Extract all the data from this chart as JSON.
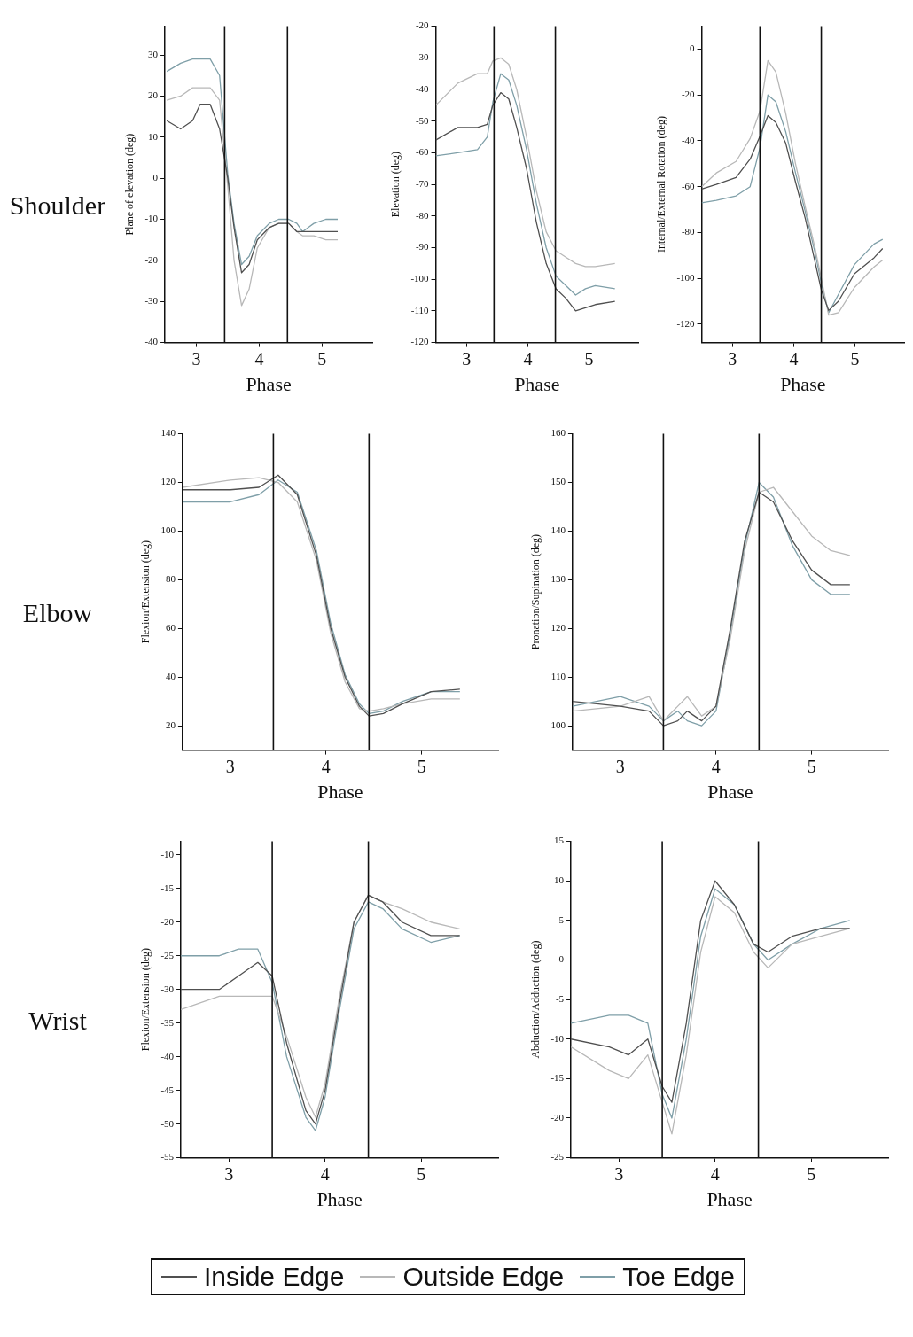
{
  "chart_data": [
    {
      "type": "line",
      "ylabel": "Plane of elevation (deg)",
      "xlabel": "Phase",
      "annotations": [
        "Shoulder"
      ],
      "legend": "bottom",
      "grid": false,
      "x": [
        2.53,
        2.75,
        2.94,
        3.06,
        3.22,
        3.37,
        3.5,
        3.6,
        3.72,
        3.84,
        3.97,
        4.16,
        4.31,
        4.47,
        4.6,
        4.69,
        4.87,
        5.06,
        5.25
      ],
      "xlim": [
        2.5,
        5.8
      ],
      "xticks": [
        3,
        4,
        5
      ],
      "ylim": [
        -40,
        37
      ],
      "yticks": [
        30,
        20,
        10,
        0,
        -10,
        -20,
        -30,
        -40
      ],
      "ref_lines": [
        {
          "axis": "x",
          "value": 3.45
        },
        {
          "axis": "x",
          "value": 4.45
        }
      ],
      "series": [
        {
          "name": "Inside Edge",
          "color": "#505050",
          "values": [
            14,
            12,
            14,
            18,
            18,
            12,
            0,
            -12,
            -23,
            -21,
            -15,
            -12,
            -11,
            -11,
            -13,
            -13,
            -13,
            -13,
            -13
          ]
        },
        {
          "name": "Outside Edge",
          "color": "#b8b8b8",
          "values": [
            19,
            20,
            22,
            22,
            22,
            19,
            -2,
            -20,
            -31,
            -27,
            -17,
            -12,
            -11,
            -11,
            -13,
            -14,
            -14,
            -15,
            -15
          ]
        },
        {
          "name": "Toe Edge",
          "color": "#7f9fa8",
          "values": [
            26,
            28,
            29,
            29,
            29,
            25,
            1,
            -11,
            -21,
            -19,
            -14,
            -11,
            -10,
            -10,
            -11,
            -13,
            -11,
            -10,
            -10
          ]
        }
      ]
    },
    {
      "type": "line",
      "ylabel": "Elevation (deg)",
      "xlabel": "Phase",
      "grid": false,
      "x": [
        2.5,
        2.86,
        3.18,
        3.34,
        3.43,
        3.56,
        3.69,
        3.82,
        3.98,
        4.14,
        4.3,
        4.46,
        4.62,
        4.78,
        4.94,
        5.1,
        5.42
      ],
      "xlim": [
        2.5,
        5.8
      ],
      "xticks": [
        3,
        4,
        5
      ],
      "ylim": [
        -120,
        -20
      ],
      "yticks": [
        -20,
        -30,
        -40,
        -50,
        -60,
        -70,
        -80,
        -90,
        -100,
        -110,
        -120
      ],
      "ref_lines": [
        {
          "axis": "x",
          "value": 3.45
        },
        {
          "axis": "x",
          "value": 4.45
        }
      ],
      "series": [
        {
          "color": "#505050",
          "values": [
            -56,
            -52,
            -52,
            -51,
            -45,
            -41,
            -43,
            -52,
            -65,
            -82,
            -95,
            -103,
            -106,
            -110,
            -109,
            -108,
            -107
          ]
        },
        {
          "color": "#b8b8b8",
          "values": [
            -45,
            -38,
            -35,
            -35,
            -31,
            -30,
            -32,
            -40,
            -55,
            -72,
            -85,
            -91,
            -93,
            -95,
            -96,
            -96,
            -95
          ]
        },
        {
          "color": "#7f9fa8",
          "values": [
            -61,
            -60,
            -59,
            -55,
            -44,
            -35,
            -37,
            -45,
            -59,
            -76,
            -90,
            -99,
            -102,
            -105,
            -103,
            -102,
            -103
          ]
        }
      ]
    },
    {
      "type": "line",
      "ylabel": "Internal/External Rotation (deg)",
      "xlabel": "Phase",
      "grid": false,
      "x": [
        2.5,
        2.74,
        3.06,
        3.29,
        3.45,
        3.58,
        3.71,
        3.87,
        4.03,
        4.19,
        4.35,
        4.45,
        4.57,
        4.73,
        4.99,
        5.31,
        5.45
      ],
      "xlim": [
        2.5,
        5.8
      ],
      "xticks": [
        3,
        4,
        5
      ],
      "ylim": [
        -128,
        10
      ],
      "yticks": [
        0,
        -20,
        -40,
        -60,
        -80,
        -100,
        -120
      ],
      "ref_lines": [
        {
          "axis": "x",
          "value": 3.45
        },
        {
          "axis": "x",
          "value": 4.45
        }
      ],
      "series": [
        {
          "color": "#505050",
          "values": [
            -61,
            -59,
            -56,
            -48,
            -38,
            -29,
            -32,
            -41,
            -58,
            -74,
            -93,
            -105,
            -114,
            -110,
            -98,
            -91,
            -87
          ]
        },
        {
          "color": "#b8b8b8",
          "values": [
            -60,
            -54,
            -49,
            -39,
            -27,
            -5,
            -10,
            -28,
            -50,
            -69,
            -87,
            -100,
            -116,
            -115,
            -104,
            -95,
            -92
          ]
        },
        {
          "color": "#7f9fa8",
          "values": [
            -67,
            -66,
            -64,
            -60,
            -43,
            -20,
            -23,
            -36,
            -54,
            -71,
            -89,
            -102,
            -115,
            -107,
            -94,
            -85,
            -83
          ]
        }
      ]
    },
    {
      "type": "line",
      "ylabel": "Flexion/Extension (deg)",
      "xlabel": "Phase",
      "annotations": [
        "Elbow"
      ],
      "grid": false,
      "x": [
        2.5,
        3.0,
        3.3,
        3.5,
        3.7,
        3.9,
        4.05,
        4.2,
        4.35,
        4.45,
        4.6,
        4.8,
        5.1,
        5.4
      ],
      "xlim": [
        2.5,
        5.8
      ],
      "xticks": [
        3,
        4,
        5
      ],
      "ylim": [
        10,
        140
      ],
      "yticks": [
        140,
        120,
        100,
        80,
        60,
        40,
        20
      ],
      "ref_lines": [
        {
          "axis": "x",
          "value": 3.45
        },
        {
          "axis": "x",
          "value": 4.45
        }
      ],
      "series": [
        {
          "color": "#505050",
          "values": [
            117,
            117,
            118,
            123,
            115,
            90,
            60,
            40,
            28,
            24,
            25,
            29,
            34,
            35
          ]
        },
        {
          "color": "#b8b8b8",
          "values": [
            118,
            121,
            122,
            120,
            112,
            88,
            58,
            38,
            27,
            26,
            27,
            29,
            31,
            31
          ]
        },
        {
          "color": "#7f9fa8",
          "values": [
            112,
            112,
            115,
            121,
            116,
            92,
            62,
            41,
            29,
            25,
            26,
            30,
            34,
            34
          ]
        }
      ]
    },
    {
      "type": "line",
      "ylabel": "Pronation/Supination (deg)",
      "xlabel": "Phase",
      "grid": false,
      "x": [
        2.5,
        3.0,
        3.3,
        3.45,
        3.6,
        3.7,
        3.85,
        4.0,
        4.15,
        4.3,
        4.45,
        4.6,
        4.8,
        5.0,
        5.2,
        5.4
      ],
      "xlim": [
        2.5,
        5.8
      ],
      "xticks": [
        3,
        4,
        5
      ],
      "ylim": [
        95,
        160
      ],
      "yticks": [
        160,
        150,
        140,
        130,
        120,
        110,
        100
      ],
      "ref_lines": [
        {
          "axis": "x",
          "value": 3.45
        },
        {
          "axis": "x",
          "value": 4.45
        }
      ],
      "series": [
        {
          "color": "#505050",
          "values": [
            105,
            104,
            103,
            100,
            101,
            103,
            101,
            104,
            120,
            138,
            148,
            146,
            138,
            132,
            129,
            129
          ]
        },
        {
          "color": "#b8b8b8",
          "values": [
            103,
            104,
            106,
            101,
            104,
            106,
            102,
            104,
            118,
            136,
            148,
            149,
            144,
            139,
            136,
            135
          ]
        },
        {
          "color": "#7f9fa8",
          "values": [
            104,
            106,
            104,
            101,
            103,
            101,
            100,
            103,
            119,
            137,
            150,
            147,
            137,
            130,
            127,
            127
          ]
        }
      ]
    },
    {
      "type": "line",
      "ylabel": "Flexion/Extension (deg)",
      "xlabel": "Phase",
      "annotations": [
        "Wrist"
      ],
      "grid": false,
      "x": [
        2.5,
        2.9,
        3.1,
        3.3,
        3.45,
        3.6,
        3.8,
        3.9,
        4.0,
        4.15,
        4.3,
        4.45,
        4.6,
        4.8,
        5.1,
        5.4
      ],
      "xlim": [
        2.5,
        5.8
      ],
      "xticks": [
        3,
        4,
        5
      ],
      "ylim": [
        -55,
        -8
      ],
      "yticks": [
        -10,
        -15,
        -20,
        -25,
        -30,
        -35,
        -40,
        -45,
        -50,
        -55
      ],
      "ref_lines": [
        {
          "axis": "x",
          "value": 3.45
        },
        {
          "axis": "x",
          "value": 4.45
        }
      ],
      "series": [
        {
          "color": "#505050",
          "values": [
            -30,
            -30,
            -28,
            -26,
            -28,
            -38,
            -48,
            -50,
            -45,
            -32,
            -20,
            -16,
            -17,
            -20,
            -22,
            -22
          ]
        },
        {
          "color": "#b8b8b8",
          "values": [
            -33,
            -31,
            -31,
            -31,
            -31,
            -37,
            -46,
            -49,
            -44,
            -31,
            -20,
            -16,
            -17,
            -18,
            -20,
            -21
          ]
        },
        {
          "color": "#7f9fa8",
          "values": [
            -25,
            -25,
            -24,
            -24,
            -29,
            -40,
            -49,
            -51,
            -46,
            -33,
            -21,
            -17,
            -18,
            -21,
            -23,
            -22
          ]
        }
      ]
    },
    {
      "type": "line",
      "ylabel": "Abduction/Adduction (deg)",
      "xlabel": "Phase",
      "grid": false,
      "x": [
        2.5,
        2.9,
        3.1,
        3.3,
        3.45,
        3.55,
        3.7,
        3.85,
        4.0,
        4.2,
        4.4,
        4.55,
        4.8,
        5.1,
        5.4
      ],
      "xlim": [
        2.5,
        5.8
      ],
      "xticks": [
        3,
        4,
        5
      ],
      "ylim": [
        -25,
        15
      ],
      "yticks": [
        15,
        10,
        5,
        0,
        -5,
        -10,
        -15,
        -20,
        -25
      ],
      "ref_lines": [
        {
          "axis": "x",
          "value": 3.45
        },
        {
          "axis": "x",
          "value": 4.45
        }
      ],
      "series": [
        {
          "color": "#505050",
          "values": [
            -10,
            -11,
            -12,
            -10,
            -16,
            -18,
            -8,
            5,
            10,
            7,
            2,
            1,
            3,
            4,
            4
          ]
        },
        {
          "color": "#b8b8b8",
          "values": [
            -11,
            -14,
            -15,
            -12,
            -18,
            -22,
            -12,
            1,
            8,
            6,
            1,
            -1,
            2,
            3,
            4
          ]
        },
        {
          "color": "#7f9fa8",
          "values": [
            -8,
            -7,
            -7,
            -8,
            -17,
            -20,
            -10,
            3,
            9,
            7,
            2,
            0,
            2,
            4,
            5
          ]
        }
      ]
    }
  ]
}
